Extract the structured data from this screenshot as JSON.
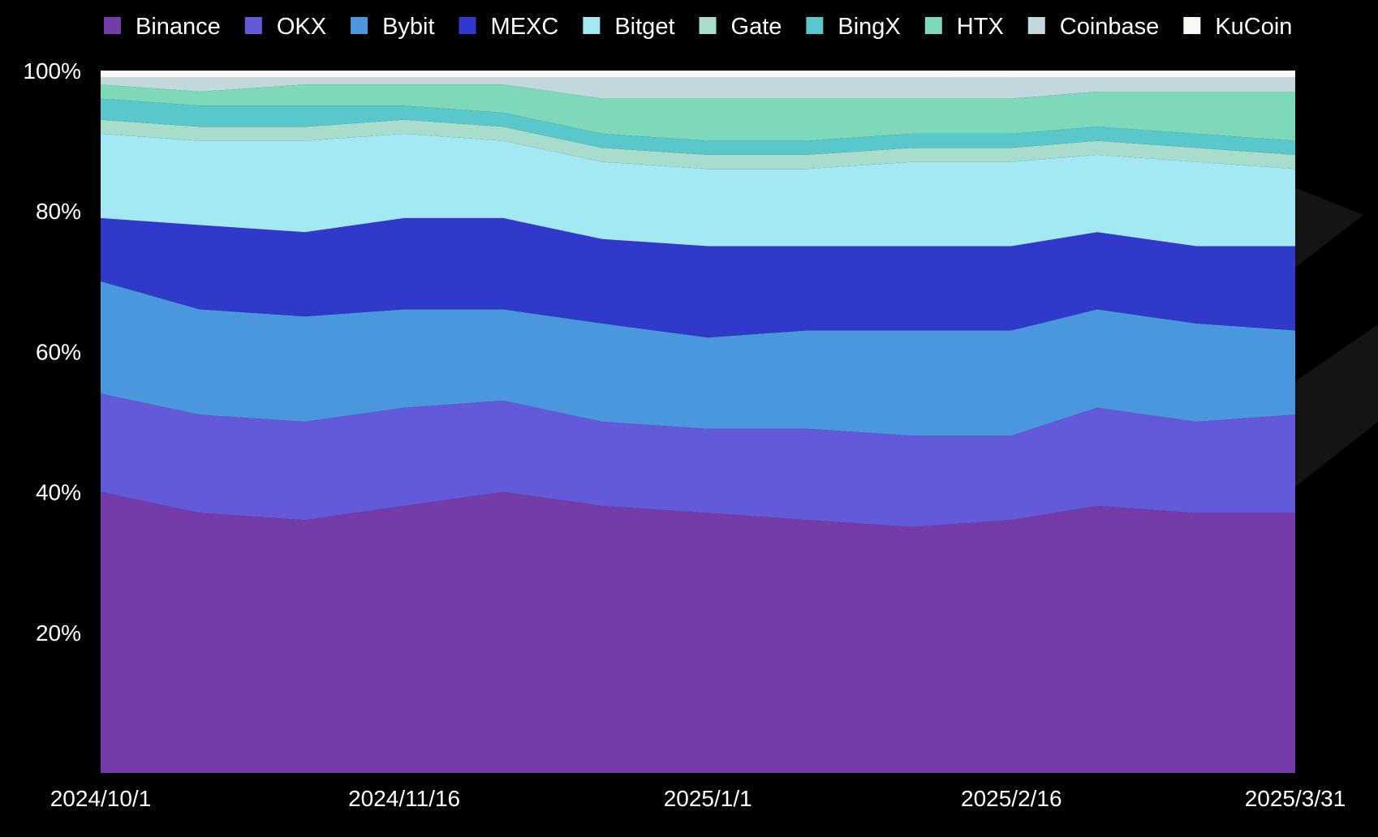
{
  "chart_data": {
    "type": "area",
    "stacked": true,
    "normalized": true,
    "legend_position": "top",
    "grid": false,
    "background": "#000000",
    "x_ticks": [
      "2024/10/1",
      "2024/11/16",
      "2025/1/1",
      "2025/2/16",
      "2025/3/31"
    ],
    "y_ticks": [
      "20%",
      "40%",
      "60%",
      "80%",
      "100%"
    ],
    "ylim": [
      0,
      100
    ],
    "x": [
      "2024/10/1",
      "2024/10/16",
      "2024/11/1",
      "2024/11/16",
      "2024/12/1",
      "2024/12/16",
      "2025/1/1",
      "2025/1/16",
      "2025/2/1",
      "2025/2/16",
      "2025/3/1",
      "2025/3/16",
      "2025/3/31"
    ],
    "series": [
      {
        "name": "Binance",
        "color": "#753ca9",
        "values": [
          40,
          37,
          36,
          38,
          40,
          38,
          37,
          36,
          35,
          36,
          38,
          37,
          37
        ]
      },
      {
        "name": "OKX",
        "color": "#625ad8",
        "values": [
          14,
          14,
          14,
          14,
          13,
          12,
          12,
          13,
          13,
          12,
          14,
          13,
          14
        ]
      },
      {
        "name": "Bybit",
        "color": "#4b97dd",
        "values": [
          16,
          15,
          15,
          14,
          13,
          14,
          13,
          14,
          15,
          15,
          14,
          14,
          12
        ]
      },
      {
        "name": "MEXC",
        "color": "#3139cb",
        "values": [
          9,
          12,
          12,
          13,
          13,
          12,
          13,
          12,
          12,
          12,
          11,
          11,
          12
        ]
      },
      {
        "name": "Bitget",
        "color": "#a3e9f4",
        "values": [
          12,
          12,
          13,
          12,
          11,
          11,
          11,
          11,
          12,
          12,
          11,
          12,
          11
        ]
      },
      {
        "name": "Gate",
        "color": "#a8dccc",
        "values": [
          2,
          2,
          2,
          2,
          2,
          2,
          2,
          2,
          2,
          2,
          2,
          2,
          2
        ]
      },
      {
        "name": "BingX",
        "color": "#58c8cd",
        "values": [
          3,
          3,
          3,
          2,
          2,
          2,
          2,
          2,
          2,
          2,
          2,
          2,
          2
        ]
      },
      {
        "name": "HTX",
        "color": "#7dd9b8",
        "values": [
          2,
          2,
          3,
          3,
          4,
          5,
          6,
          6,
          5,
          5,
          5,
          6,
          7
        ]
      },
      {
        "name": "Coinbase",
        "color": "#c2d8dd",
        "values": [
          1,
          2,
          1,
          1,
          1,
          3,
          3,
          3,
          3,
          3,
          2,
          2,
          2
        ]
      },
      {
        "name": "KuCoin",
        "color": "#f7f9f2",
        "values": [
          1,
          1,
          1,
          1,
          1,
          1,
          1,
          1,
          1,
          1,
          1,
          1,
          1
        ]
      }
    ]
  }
}
